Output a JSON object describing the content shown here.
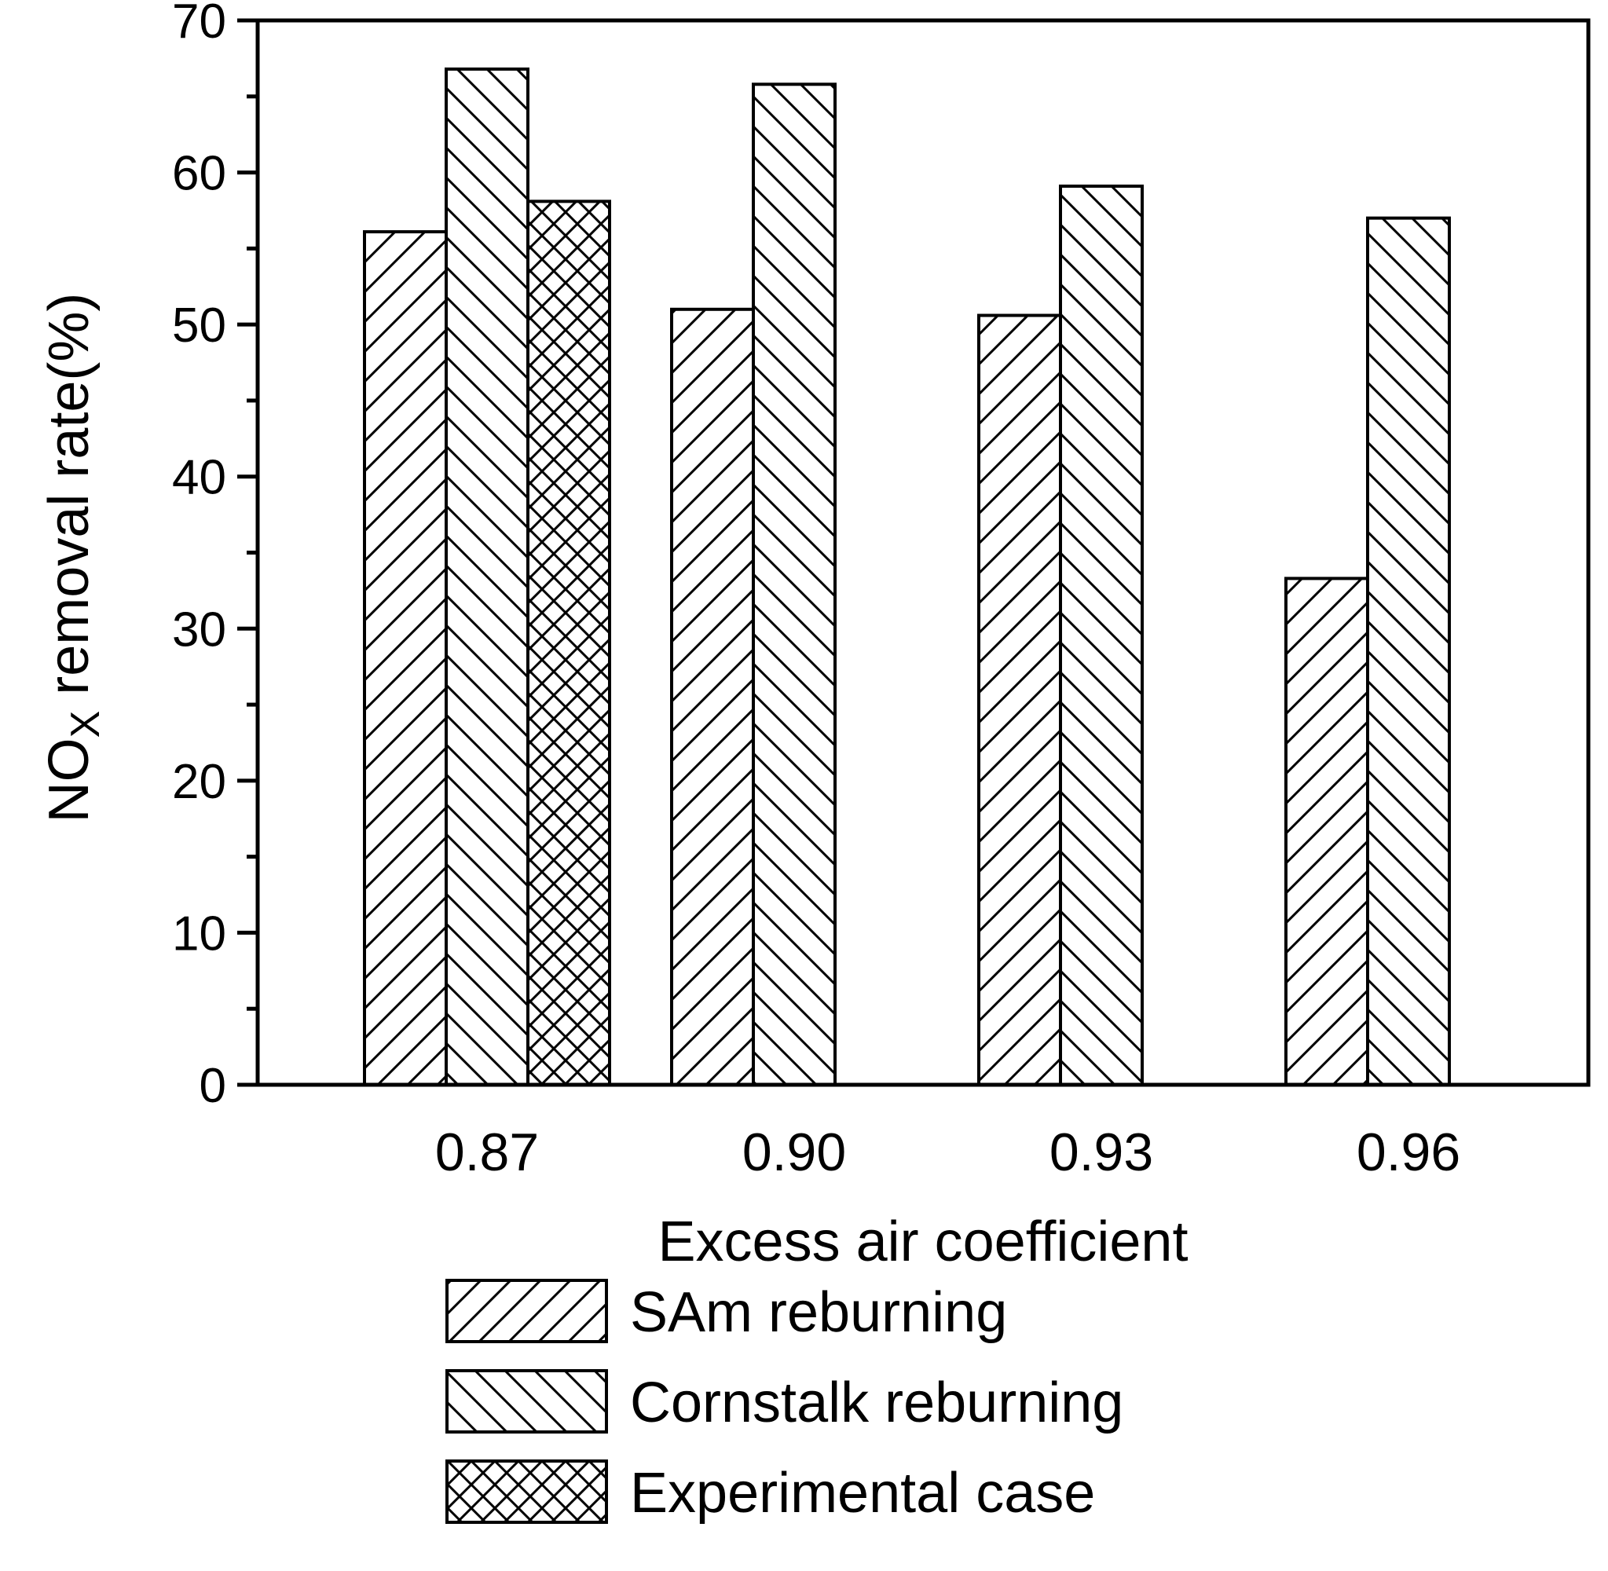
{
  "chart_data": {
    "type": "bar",
    "title": "",
    "xlabel": "Excess air coefficient",
    "ylabel": {
      "main": "NO",
      "subscript": "X",
      "rest": " removal rate(%)"
    },
    "categories": [
      "0.87",
      "0.90",
      "0.93",
      "0.96"
    ],
    "ylim": [
      0,
      70
    ],
    "yticks": [
      0,
      10,
      20,
      30,
      40,
      50,
      60,
      70
    ],
    "series": [
      {
        "name": "SAm reburning",
        "pattern": "forward-hatch",
        "values": [
          56.1,
          51.0,
          50.6,
          33.3
        ]
      },
      {
        "name": "Cornstalk reburning",
        "pattern": "back-hatch",
        "values": [
          66.8,
          65.8,
          59.1,
          57.0
        ]
      },
      {
        "name": "Experimental case",
        "pattern": "cross-hatch",
        "values": [
          58.1,
          null,
          null,
          null
        ]
      }
    ],
    "legend_position": "below-plot",
    "grid": false
  }
}
